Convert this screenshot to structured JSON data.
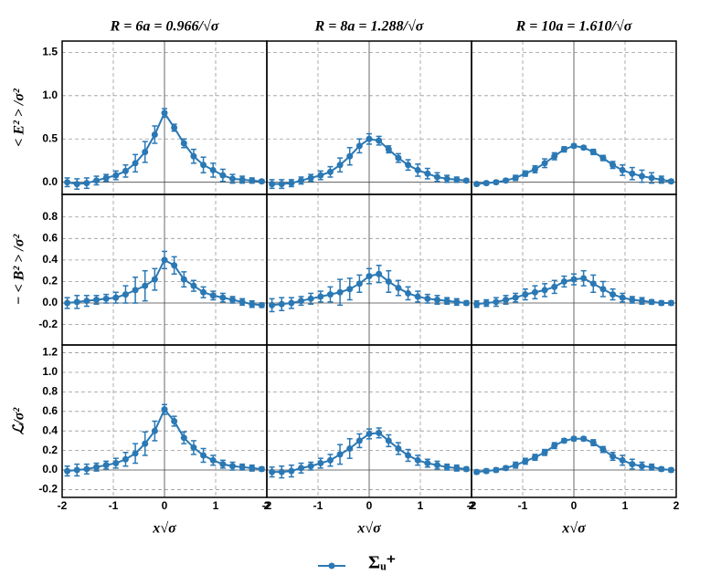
{
  "chart_data": [
    {
      "type": "errorbar",
      "title": "R = 6a = 0.966/√σ",
      "ylabel": "< E² > /σ²",
      "x": [
        -1.9,
        -1.71,
        -1.52,
        -1.33,
        -1.14,
        -0.95,
        -0.76,
        -0.57,
        -0.38,
        -0.19,
        0,
        0.19,
        0.38,
        0.57,
        0.76,
        0.95,
        1.14,
        1.33,
        1.52,
        1.71,
        1.9
      ],
      "series": [
        {
          "name": "Σᵤ⁺",
          "color": "#2a78b4",
          "values": [
            0.0,
            -0.02,
            -0.01,
            0.02,
            0.05,
            0.08,
            0.13,
            0.22,
            0.35,
            0.55,
            0.8,
            0.63,
            0.45,
            0.3,
            0.2,
            0.14,
            0.08,
            0.04,
            0.03,
            0.02,
            0.01
          ],
          "errors": [
            0.05,
            0.06,
            0.06,
            0.05,
            0.04,
            0.05,
            0.07,
            0.1,
            0.12,
            0.1,
            0.05,
            0.04,
            0.05,
            0.08,
            0.09,
            0.08,
            0.07,
            0.05,
            0.04,
            0.03,
            0.02
          ]
        }
      ],
      "xlim": [
        -2,
        2
      ],
      "ylim": [
        -0.14,
        1.63
      ],
      "xticks": [
        -2,
        -1,
        0,
        1,
        2
      ],
      "yticks": [
        {
          "value": 0,
          "label": "0.0"
        },
        0.5,
        {
          "value": 1,
          "label": "1.0"
        },
        1.5
      ]
    },
    {
      "type": "errorbar",
      "title": "R = 8a = 1.288/√σ",
      "x": [
        -1.9,
        -1.71,
        -1.52,
        -1.33,
        -1.14,
        -0.95,
        -0.76,
        -0.57,
        -0.38,
        -0.19,
        0,
        0.19,
        0.38,
        0.57,
        0.76,
        0.95,
        1.14,
        1.33,
        1.52,
        1.71,
        1.9
      ],
      "series": [
        {
          "color": "#2a78b4",
          "values": [
            -0.02,
            -0.02,
            -0.01,
            0.02,
            0.05,
            0.08,
            0.12,
            0.2,
            0.3,
            0.42,
            0.5,
            0.48,
            0.38,
            0.28,
            0.2,
            0.14,
            0.1,
            0.06,
            0.04,
            0.03,
            0.02
          ],
          "errors": [
            0.05,
            0.05,
            0.04,
            0.04,
            0.04,
            0.05,
            0.06,
            0.08,
            0.1,
            0.08,
            0.06,
            0.05,
            0.04,
            0.05,
            0.06,
            0.07,
            0.06,
            0.05,
            0.04,
            0.03,
            0.02
          ]
        }
      ],
      "xlim": [
        -2,
        2
      ],
      "ylim": [
        -0.14,
        1.63
      ],
      "xticks": [
        -2,
        -1,
        0,
        1,
        2
      ],
      "yticks": [
        0,
        0.5,
        1,
        1.5
      ]
    },
    {
      "type": "errorbar",
      "title": "R = 10a = 1.610/√σ",
      "x": [
        -1.9,
        -1.71,
        -1.52,
        -1.33,
        -1.14,
        -0.95,
        -0.76,
        -0.57,
        -0.38,
        -0.19,
        0,
        0.19,
        0.38,
        0.57,
        0.76,
        0.95,
        1.14,
        1.33,
        1.52,
        1.71,
        1.9
      ],
      "series": [
        {
          "color": "#2a78b4",
          "values": [
            -0.02,
            -0.01,
            0.0,
            0.02,
            0.05,
            0.1,
            0.15,
            0.22,
            0.3,
            0.38,
            0.42,
            0.4,
            0.35,
            0.28,
            0.2,
            0.14,
            0.1,
            0.07,
            0.05,
            0.03,
            0.01
          ],
          "errors": [
            0.02,
            0.02,
            0.02,
            0.02,
            0.03,
            0.03,
            0.04,
            0.05,
            0.04,
            0.03,
            0.02,
            0.02,
            0.03,
            0.03,
            0.04,
            0.06,
            0.07,
            0.07,
            0.06,
            0.04,
            0.02
          ]
        }
      ],
      "xlim": [
        -2,
        2
      ],
      "ylim": [
        -0.14,
        1.63
      ],
      "xticks": [
        -2,
        -1,
        0,
        1,
        2
      ],
      "yticks": [
        0,
        0.5,
        1,
        1.5
      ]
    },
    {
      "type": "errorbar",
      "ylabel": "− < B² > /σ²",
      "x": [
        -1.9,
        -1.71,
        -1.52,
        -1.33,
        -1.14,
        -0.95,
        -0.76,
        -0.57,
        -0.38,
        -0.19,
        0,
        0.19,
        0.38,
        0.57,
        0.76,
        0.95,
        1.14,
        1.33,
        1.52,
        1.71,
        1.9
      ],
      "series": [
        {
          "color": "#2a78b4",
          "values": [
            0.0,
            0.01,
            0.02,
            0.03,
            0.04,
            0.05,
            0.08,
            0.12,
            0.16,
            0.22,
            0.4,
            0.35,
            0.22,
            0.16,
            0.1,
            0.07,
            0.05,
            0.03,
            0.01,
            -0.01,
            -0.02
          ],
          "errors": [
            0.05,
            0.06,
            0.05,
            0.04,
            0.04,
            0.05,
            0.08,
            0.12,
            0.14,
            0.1,
            0.08,
            0.08,
            0.07,
            0.05,
            0.05,
            0.04,
            0.04,
            0.03,
            0.03,
            0.03,
            0.02
          ]
        }
      ],
      "xlim": [
        -2,
        2
      ],
      "ylim": [
        -0.39,
        1.01
      ],
      "xticks": [
        -2,
        -1,
        0,
        1,
        2
      ],
      "yticks": [
        -0.2,
        {
          "value": 0,
          "label": "0.0"
        },
        0.2,
        0.4,
        0.6,
        0.8
      ]
    },
    {
      "type": "errorbar",
      "x": [
        -1.9,
        -1.71,
        -1.52,
        -1.33,
        -1.14,
        -0.95,
        -0.76,
        -0.57,
        -0.38,
        -0.19,
        0,
        0.19,
        0.38,
        0.57,
        0.76,
        0.95,
        1.14,
        1.33,
        1.52,
        1.71,
        1.9
      ],
      "series": [
        {
          "color": "#2a78b4",
          "values": [
            -0.02,
            -0.01,
            0.0,
            0.02,
            0.04,
            0.06,
            0.08,
            0.1,
            0.13,
            0.18,
            0.25,
            0.27,
            0.2,
            0.14,
            0.09,
            0.06,
            0.04,
            0.03,
            0.02,
            0.01,
            0.0
          ],
          "errors": [
            0.06,
            0.06,
            0.05,
            0.04,
            0.05,
            0.05,
            0.07,
            0.12,
            0.1,
            0.08,
            0.07,
            0.08,
            0.1,
            0.07,
            0.06,
            0.05,
            0.04,
            0.04,
            0.03,
            0.03,
            0.02
          ]
        }
      ],
      "xlim": [
        -2,
        2
      ],
      "ylim": [
        -0.39,
        1.01
      ],
      "xticks": [
        -2,
        -1,
        0,
        1,
        2
      ],
      "yticks": [
        -0.2,
        0,
        0.2,
        0.4,
        0.6,
        0.8
      ]
    },
    {
      "type": "errorbar",
      "x": [
        -1.9,
        -1.71,
        -1.52,
        -1.33,
        -1.14,
        -0.95,
        -0.76,
        -0.57,
        -0.38,
        -0.19,
        0,
        0.19,
        0.38,
        0.57,
        0.76,
        0.95,
        1.14,
        1.33,
        1.52,
        1.71,
        1.9
      ],
      "series": [
        {
          "color": "#2a78b4",
          "values": [
            -0.01,
            0.0,
            0.01,
            0.03,
            0.05,
            0.08,
            0.1,
            0.12,
            0.15,
            0.2,
            0.22,
            0.23,
            0.18,
            0.13,
            0.08,
            0.05,
            0.03,
            0.02,
            0.01,
            0.0,
            0.0
          ],
          "errors": [
            0.03,
            0.03,
            0.04,
            0.04,
            0.04,
            0.05,
            0.06,
            0.06,
            0.06,
            0.05,
            0.05,
            0.07,
            0.08,
            0.07,
            0.05,
            0.04,
            0.03,
            0.03,
            0.02,
            0.02,
            0.02
          ]
        }
      ],
      "xlim": [
        -2,
        2
      ],
      "ylim": [
        -0.39,
        1.01
      ],
      "xticks": [
        -2,
        -1,
        0,
        1,
        2
      ],
      "yticks": [
        -0.2,
        0,
        0.2,
        0.4,
        0.6,
        0.8
      ]
    },
    {
      "type": "errorbar",
      "ylabel": "ℒ/σ²",
      "xlabel": "x√σ",
      "x": [
        -1.9,
        -1.71,
        -1.52,
        -1.33,
        -1.14,
        -0.95,
        -0.76,
        -0.57,
        -0.38,
        -0.19,
        0,
        0.19,
        0.38,
        0.57,
        0.76,
        0.95,
        1.14,
        1.33,
        1.52,
        1.71,
        1.9
      ],
      "series": [
        {
          "color": "#2a78b4",
          "values": [
            -0.01,
            0.0,
            0.01,
            0.03,
            0.05,
            0.07,
            0.11,
            0.17,
            0.27,
            0.4,
            0.62,
            0.5,
            0.33,
            0.23,
            0.15,
            0.1,
            0.06,
            0.04,
            0.03,
            0.02,
            0.01
          ],
          "errors": [
            0.05,
            0.06,
            0.05,
            0.04,
            0.04,
            0.05,
            0.07,
            0.1,
            0.12,
            0.1,
            0.05,
            0.05,
            0.06,
            0.07,
            0.07,
            0.05,
            0.04,
            0.04,
            0.03,
            0.03,
            0.02
          ]
        }
      ],
      "xlim": [
        -2,
        2
      ],
      "ylim": [
        -0.28,
        1.28
      ],
      "xticks": [
        -2,
        -1,
        0,
        1,
        2
      ],
      "yticks": [
        -0.2,
        {
          "value": 0,
          "label": "0.0"
        },
        0.2,
        0.4,
        0.6,
        0.8,
        {
          "value": 1,
          "label": "1.0"
        },
        1.2
      ]
    },
    {
      "type": "errorbar",
      "xlabel": "x√σ",
      "x": [
        -1.9,
        -1.71,
        -1.52,
        -1.33,
        -1.14,
        -0.95,
        -0.76,
        -0.57,
        -0.38,
        -0.19,
        0,
        0.19,
        0.38,
        0.57,
        0.76,
        0.95,
        1.14,
        1.33,
        1.52,
        1.71,
        1.9
      ],
      "series": [
        {
          "color": "#2a78b4",
          "values": [
            -0.02,
            -0.02,
            -0.01,
            0.02,
            0.04,
            0.07,
            0.1,
            0.16,
            0.22,
            0.3,
            0.37,
            0.38,
            0.3,
            0.22,
            0.15,
            0.1,
            0.07,
            0.05,
            0.03,
            0.02,
            0.01
          ],
          "errors": [
            0.05,
            0.06,
            0.06,
            0.05,
            0.04,
            0.05,
            0.06,
            0.1,
            0.1,
            0.07,
            0.05,
            0.05,
            0.06,
            0.06,
            0.06,
            0.05,
            0.04,
            0.04,
            0.03,
            0.03,
            0.02
          ]
        }
      ],
      "xlim": [
        -2,
        2
      ],
      "ylim": [
        -0.28,
        1.28
      ],
      "xticks": [
        -2,
        -1,
        0,
        1,
        2
      ],
      "yticks": [
        -0.2,
        0,
        0.2,
        0.4,
        0.6,
        0.8,
        1,
        1.2
      ]
    },
    {
      "type": "errorbar",
      "xlabel": "x√σ",
      "x": [
        -1.9,
        -1.71,
        -1.52,
        -1.33,
        -1.14,
        -0.95,
        -0.76,
        -0.57,
        -0.38,
        -0.19,
        0,
        0.19,
        0.38,
        0.57,
        0.76,
        0.95,
        1.14,
        1.33,
        1.52,
        1.71,
        1.9
      ],
      "series": [
        {
          "color": "#2a78b4",
          "values": [
            -0.02,
            -0.01,
            0.0,
            0.02,
            0.05,
            0.09,
            0.13,
            0.18,
            0.25,
            0.3,
            0.32,
            0.32,
            0.28,
            0.21,
            0.14,
            0.1,
            0.06,
            0.04,
            0.03,
            0.01,
            0.0
          ],
          "errors": [
            0.02,
            0.02,
            0.02,
            0.02,
            0.03,
            0.03,
            0.03,
            0.03,
            0.03,
            0.02,
            0.02,
            0.02,
            0.03,
            0.03,
            0.04,
            0.05,
            0.05,
            0.04,
            0.03,
            0.02,
            0.02
          ]
        }
      ],
      "xlim": [
        -2,
        2
      ],
      "ylim": [
        -0.28,
        1.28
      ],
      "xticks": [
        -2,
        -1,
        0,
        1,
        2
      ],
      "yticks": [
        -0.2,
        0,
        0.2,
        0.4,
        0.6,
        0.8,
        1,
        1.2
      ]
    }
  ]
}
